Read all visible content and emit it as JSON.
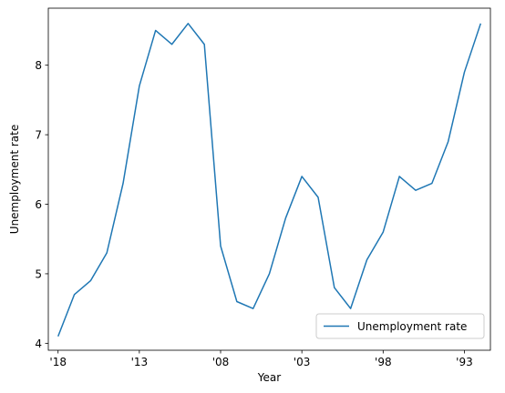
{
  "chart_data": {
    "type": "line",
    "title": "",
    "xlabel": "Year",
    "ylabel": "Unemployment rate",
    "x": [
      2018,
      2017,
      2016,
      2015,
      2014,
      2013,
      2012,
      2011,
      2010,
      2009,
      2008,
      2007,
      2006,
      2005,
      2004,
      2003,
      2002,
      2001,
      2000,
      1999,
      1998,
      1997,
      1996,
      1995,
      1994,
      1993,
      1992
    ],
    "x_reversed": true,
    "xticks": [
      2018,
      2013,
      2008,
      2003,
      1998,
      1993
    ],
    "xtick_labels": [
      "'18",
      "'13",
      "'08",
      "'03",
      "'98",
      "'93"
    ],
    "xlim": [
      2018.6,
      1991.4
    ],
    "ylim": [
      3.9,
      8.82
    ],
    "yticks": [
      4,
      5,
      6,
      7,
      8
    ],
    "ytick_labels": [
      "4",
      "5",
      "6",
      "7",
      "8"
    ],
    "grid": false,
    "legend_position": "bottom-right",
    "series": [
      {
        "name": "Unemployment rate",
        "color": "#1f77b4",
        "values": [
          4.1,
          4.7,
          4.9,
          5.3,
          6.3,
          7.7,
          8.5,
          8.3,
          8.6,
          8.3,
          5.4,
          4.6,
          4.5,
          5.0,
          5.8,
          6.4,
          6.1,
          4.8,
          4.5,
          5.2,
          5.6,
          6.4,
          6.2,
          6.3,
          6.9,
          7.9,
          8.6
        ]
      }
    ]
  }
}
